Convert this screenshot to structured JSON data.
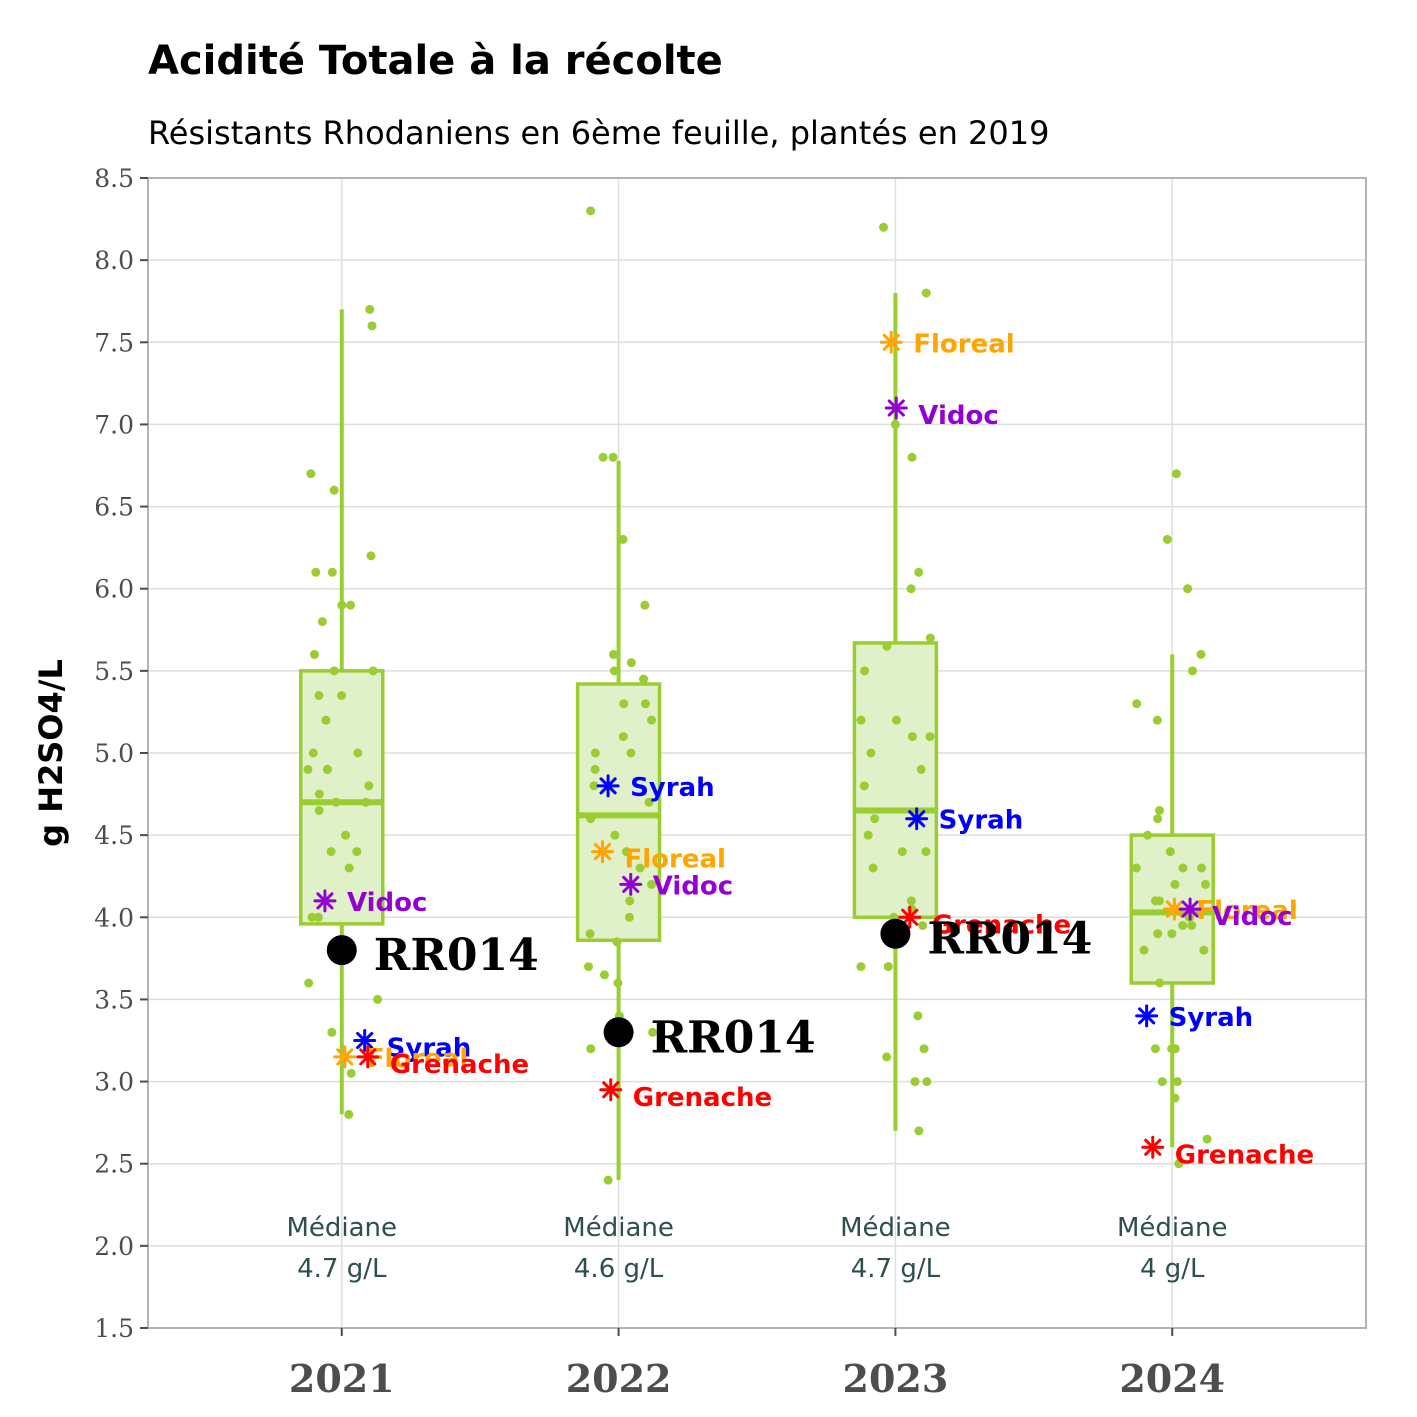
{
  "chart_data": {
    "type": "box",
    "title": "Acidité Totale à la récolte",
    "subtitle": "Résistants Rhodaniens en 6ème feuille, plantés en 2019",
    "ylabel": "g H2SO4/L",
    "ylim": [
      1.5,
      8.5
    ],
    "yticks": [
      "1.5",
      "2.0",
      "2.5",
      "3.0",
      "3.5",
      "4.0",
      "4.5",
      "5.0",
      "5.5",
      "6.0",
      "6.5",
      "7.0",
      "7.5",
      "8.0",
      "8.5"
    ],
    "grid": true,
    "colors": {
      "box": "#9acd32",
      "box_fill": "#e0f0c8",
      "points": "#9acd32",
      "Syrah": "#0000ff",
      "Floreal": "#ffa500",
      "Vidoc": "#9400d3",
      "Grenache": "#ff0000",
      "RR014": "#000000"
    },
    "groups": [
      {
        "category": "2021",
        "median_label": "Médiane",
        "median_value": "4.7 g/L",
        "box": {
          "whisker_low": 2.8,
          "q1": 3.96,
          "median": 4.7,
          "q3": 5.5,
          "whisker_high": 7.7
        },
        "points": [
          7.7,
          7.6,
          6.7,
          6.6,
          6.2,
          6.1,
          6.1,
          5.9,
          5.9,
          5.8,
          5.6,
          5.5,
          5.5,
          5.35,
          5.35,
          5.2,
          5.0,
          5.0,
          4.9,
          4.9,
          4.9,
          4.8,
          4.75,
          4.7,
          4.7,
          4.65,
          4.5,
          4.4,
          4.4,
          4.3,
          4.0,
          4.0,
          3.8,
          3.6,
          3.5,
          3.3,
          3.05,
          2.8
        ],
        "references": [
          {
            "name": "Vidoc",
            "value": 4.1
          },
          {
            "name": "Syrah",
            "value": 3.25
          },
          {
            "name": "Floreal",
            "value": 3.15
          },
          {
            "name": "Grenache",
            "value": 3.15
          }
        ],
        "focus": {
          "name": "RR014",
          "value": 3.8
        }
      },
      {
        "category": "2022",
        "median_label": "Médiane",
        "median_value": "4.6 g/L",
        "box": {
          "whisker_low": 2.4,
          "q1": 3.86,
          "median": 4.62,
          "q3": 5.42,
          "whisker_high": 6.78
        },
        "points": [
          8.3,
          6.8,
          6.8,
          6.3,
          5.9,
          5.6,
          5.55,
          5.5,
          5.45,
          5.3,
          5.3,
          5.2,
          5.1,
          5.0,
          5.0,
          4.9,
          4.8,
          4.7,
          4.6,
          4.5,
          4.4,
          4.3,
          4.2,
          4.1,
          4.0,
          3.9,
          3.85,
          3.7,
          3.65,
          3.6,
          3.4,
          3.3,
          3.2,
          2.4
        ],
        "references": [
          {
            "name": "Syrah",
            "value": 4.8
          },
          {
            "name": "Floreal",
            "value": 4.4
          },
          {
            "name": "Vidoc",
            "value": 4.2
          },
          {
            "name": "Grenache",
            "value": 2.95
          }
        ],
        "focus": {
          "name": "RR014",
          "value": 3.3
        }
      },
      {
        "category": "2023",
        "median_label": "Médiane",
        "median_value": "4.7 g/L",
        "box": {
          "whisker_low": 2.7,
          "q1": 4.0,
          "median": 4.65,
          "q3": 5.67,
          "whisker_high": 7.8
        },
        "points": [
          8.2,
          7.8,
          7.0,
          6.8,
          6.1,
          6.0,
          5.7,
          5.65,
          5.5,
          5.2,
          5.2,
          5.1,
          5.1,
          5.0,
          4.9,
          4.8,
          4.6,
          4.5,
          4.4,
          4.4,
          4.3,
          4.1,
          4.05,
          4.0,
          3.95,
          3.7,
          3.7,
          3.4,
          3.2,
          3.15,
          3.0,
          3.0,
          2.7
        ],
        "references": [
          {
            "name": "Floreal",
            "value": 7.5
          },
          {
            "name": "Vidoc",
            "value": 7.1
          },
          {
            "name": "Syrah",
            "value": 4.6
          },
          {
            "name": "Grenache",
            "value": 4.0
          }
        ],
        "focus": {
          "name": "RR014",
          "value": 3.9
        }
      },
      {
        "category": "2024",
        "median_label": "Médiane",
        "median_value": "4 g/L",
        "box": {
          "whisker_low": 2.6,
          "q1": 3.6,
          "median": 4.03,
          "q3": 4.5,
          "whisker_high": 5.6
        },
        "points": [
          6.7,
          6.3,
          6.0,
          5.6,
          5.5,
          5.3,
          5.2,
          4.65,
          4.6,
          4.5,
          4.4,
          4.3,
          4.3,
          4.3,
          4.2,
          4.2,
          4.1,
          4.1,
          4.0,
          4.0,
          3.95,
          3.95,
          3.9,
          3.9,
          3.8,
          3.8,
          3.6,
          3.2,
          3.2,
          3.2,
          3.0,
          3.0,
          2.9,
          2.65,
          2.5
        ],
        "references": [
          {
            "name": "Floreal",
            "value": 4.05
          },
          {
            "name": "Vidoc",
            "value": 4.05
          },
          {
            "name": "Syrah",
            "value": 3.4
          },
          {
            "name": "Grenache",
            "value": 2.6
          }
        ],
        "focus": null
      }
    ]
  }
}
